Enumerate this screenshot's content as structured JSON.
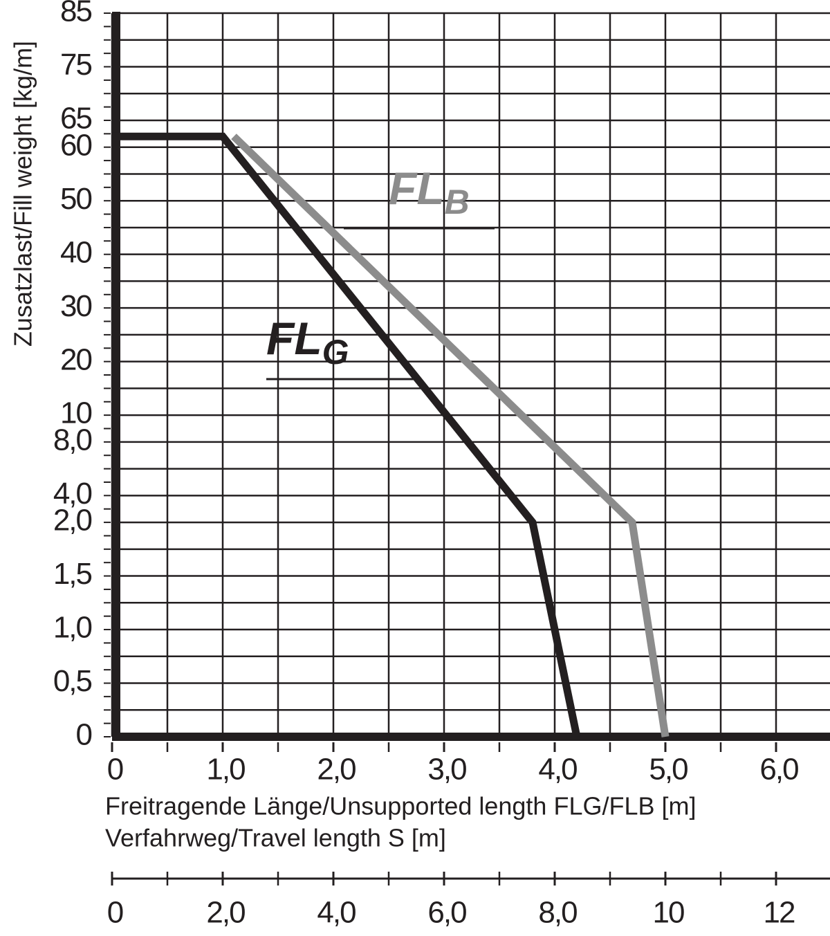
{
  "chart_data": {
    "type": "line",
    "ylabel": "Zusatzlast/Fill weight [kg/m]",
    "xlabel": "Freitragende Länge/Unsupported length FLG/FLB [m]",
    "x2label": "Verfahrweg/Travel length S [m]",
    "xlim": [
      0,
      6.5
    ],
    "xticks": [
      0,
      {
        "value": 1,
        "label": "1,0"
      },
      {
        "value": 2,
        "label": "2,0"
      },
      {
        "value": 3,
        "label": "3,0"
      },
      {
        "value": 4,
        "label": "4,0"
      },
      {
        "value": 5,
        "label": "5,0"
      },
      {
        "value": 6,
        "label": "6,0"
      }
    ],
    "x2lim": [
      0,
      13
    ],
    "x2ticks": [
      0,
      {
        "value": 2,
        "label": "2,0"
      },
      {
        "value": 4,
        "label": "4,0"
      },
      {
        "value": 6,
        "label": "6,0"
      },
      {
        "value": 8,
        "label": "8,0"
      },
      10,
      12
    ],
    "ylim": [
      0,
      85
    ],
    "yticks": [
      0,
      {
        "value": 0.5,
        "label": "0,5"
      },
      {
        "value": 1,
        "label": "1,0"
      },
      {
        "value": 1.5,
        "label": "1,5"
      },
      {
        "value": 2,
        "label": "2,0"
      },
      {
        "value": 4,
        "label": "4,0"
      },
      {
        "value": 8,
        "label": "8,0"
      },
      10,
      20,
      30,
      40,
      50,
      60,
      65,
      75,
      85
    ],
    "grid": true,
    "series": [
      {
        "name": "FL",
        "subscript": "G",
        "color": "#231f20",
        "x": [
          0,
          1.0,
          3.8,
          4.2
        ],
        "values": [
          62,
          62,
          2.0,
          0
        ]
      },
      {
        "name": "FL",
        "subscript": "B",
        "color": "#8c8c8c",
        "x": [
          1.1,
          4.7,
          5.0
        ],
        "values": [
          62,
          2.0,
          0
        ]
      }
    ]
  }
}
